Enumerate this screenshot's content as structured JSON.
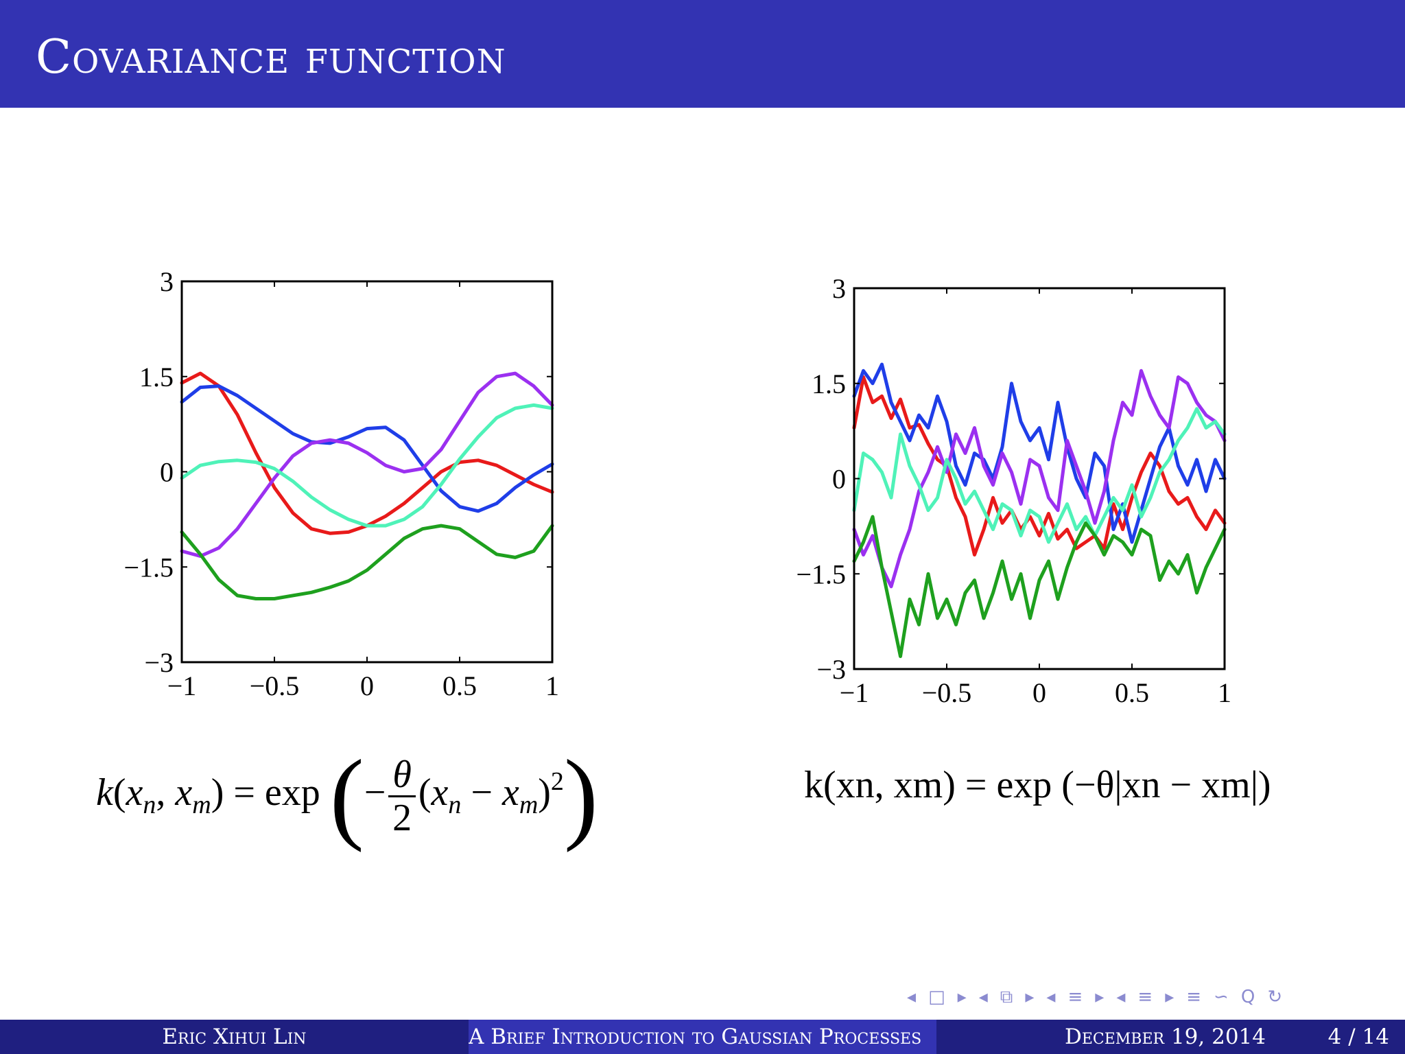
{
  "slide": {
    "title": "Covariance function"
  },
  "formulas": {
    "left_lhs": "k",
    "left_args": [
      "x",
      "n",
      "x",
      "m"
    ],
    "left_eq": "= exp",
    "left_minus": "−",
    "left_num": "θ",
    "left_den": "2",
    "left_pow": "2",
    "right_text": "k(xn, xm) = exp (−θ|xn − xm|)"
  },
  "navigation": {
    "icons": [
      "◂",
      "□",
      "▸",
      "◂",
      "⧉",
      "▸",
      "◂",
      "≡",
      "▸",
      "◂",
      "≡",
      "▸",
      "≡",
      "∽",
      "Q",
      "↻"
    ]
  },
  "footer": {
    "author": "Eric Xihui Lin",
    "talk_title": "A Brief Introduction to Gaussian Processes",
    "date": "December 19, 2014",
    "page": "4 / 14"
  },
  "chart_data": [
    {
      "type": "line",
      "xlim": [
        -1,
        1
      ],
      "ylim": [
        -3,
        3
      ],
      "xticks": [
        "−1",
        "−0.5",
        "0",
        "0.5",
        "1"
      ],
      "yticks": [
        "3",
        "1.5",
        "0",
        "−1.5",
        "−3"
      ],
      "xtick_values": [
        -1,
        -0.5,
        0,
        0.5,
        1
      ],
      "ytick_values": [
        3,
        1.5,
        0,
        -1.5,
        -3
      ],
      "grid": false,
      "series": [
        {
          "color": "#e81a1a",
          "x": [
            -1,
            -0.9,
            -0.8,
            -0.7,
            -0.6,
            -0.5,
            -0.4,
            -0.3,
            -0.2,
            -0.1,
            0,
            0.1,
            0.2,
            0.3,
            0.4,
            0.5,
            0.6,
            0.7,
            0.8,
            0.9,
            1
          ],
          "y": [
            1.4,
            1.55,
            1.35,
            0.9,
            0.3,
            -0.25,
            -0.65,
            -0.9,
            -0.97,
            -0.95,
            -0.85,
            -0.7,
            -0.5,
            -0.25,
            0,
            0.15,
            0.18,
            0.1,
            -0.05,
            -0.2,
            -0.32
          ]
        },
        {
          "color": "#1f3ee8",
          "x": [
            -1,
            -0.9,
            -0.8,
            -0.7,
            -0.6,
            -0.5,
            -0.4,
            -0.3,
            -0.2,
            -0.1,
            0,
            0.1,
            0.2,
            0.3,
            0.4,
            0.5,
            0.6,
            0.7,
            0.8,
            0.9,
            1
          ],
          "y": [
            1.1,
            1.33,
            1.35,
            1.2,
            1.0,
            0.8,
            0.6,
            0.47,
            0.45,
            0.55,
            0.68,
            0.7,
            0.5,
            0.1,
            -0.3,
            -0.55,
            -0.62,
            -0.5,
            -0.25,
            -0.05,
            0.12
          ]
        },
        {
          "color": "#9b30f0",
          "x": [
            -1,
            -0.9,
            -0.8,
            -0.7,
            -0.6,
            -0.5,
            -0.4,
            -0.3,
            -0.2,
            -0.1,
            0,
            0.1,
            0.2,
            0.3,
            0.4,
            0.5,
            0.6,
            0.7,
            0.8,
            0.9,
            1
          ],
          "y": [
            -1.25,
            -1.33,
            -1.2,
            -0.9,
            -0.5,
            -0.1,
            0.25,
            0.45,
            0.5,
            0.45,
            0.3,
            0.1,
            0.0,
            0.05,
            0.35,
            0.8,
            1.25,
            1.5,
            1.55,
            1.35,
            1.05
          ]
        },
        {
          "color": "#4ff2b8",
          "x": [
            -1,
            -0.9,
            -0.8,
            -0.7,
            -0.6,
            -0.5,
            -0.4,
            -0.3,
            -0.2,
            -0.1,
            0,
            0.1,
            0.2,
            0.3,
            0.4,
            0.5,
            0.6,
            0.7,
            0.8,
            0.9,
            1
          ],
          "y": [
            -0.1,
            0.1,
            0.16,
            0.18,
            0.15,
            0.05,
            -0.15,
            -0.4,
            -0.6,
            -0.75,
            -0.85,
            -0.85,
            -0.75,
            -0.55,
            -0.2,
            0.2,
            0.55,
            0.85,
            1.0,
            1.05,
            1.0
          ]
        },
        {
          "color": "#1ea01e",
          "x": [
            -1,
            -0.9,
            -0.8,
            -0.7,
            -0.6,
            -0.5,
            -0.4,
            -0.3,
            -0.2,
            -0.1,
            0,
            0.1,
            0.2,
            0.3,
            0.4,
            0.5,
            0.6,
            0.7,
            0.8,
            0.9,
            1
          ],
          "y": [
            -0.95,
            -1.3,
            -1.7,
            -1.95,
            -2.0,
            -2.0,
            -1.95,
            -1.9,
            -1.82,
            -1.72,
            -1.55,
            -1.3,
            -1.05,
            -0.9,
            -0.85,
            -0.9,
            -1.1,
            -1.3,
            -1.35,
            -1.25,
            -0.85
          ]
        }
      ]
    },
    {
      "type": "line",
      "xlim": [
        -1,
        1
      ],
      "ylim": [
        -3,
        3
      ],
      "xticks": [
        "−1",
        "−0.5",
        "0",
        "0.5",
        "1"
      ],
      "yticks": [
        "3",
        "1.5",
        "0",
        "−1.5",
        "−3"
      ],
      "xtick_values": [
        -1,
        -0.5,
        0,
        0.5,
        1
      ],
      "ytick_values": [
        3,
        1.5,
        0,
        -1.5,
        -3
      ],
      "grid": false,
      "series": [
        {
          "color": "#e81a1a",
          "x": [
            -1,
            -0.95,
            -0.9,
            -0.85,
            -0.8,
            -0.75,
            -0.7,
            -0.65,
            -0.6,
            -0.55,
            -0.5,
            -0.45,
            -0.4,
            -0.35,
            -0.3,
            -0.25,
            -0.2,
            -0.15,
            -0.1,
            -0.05,
            0,
            0.05,
            0.1,
            0.15,
            0.2,
            0.25,
            0.3,
            0.35,
            0.4,
            0.45,
            0.5,
            0.55,
            0.6,
            0.65,
            0.7,
            0.75,
            0.8,
            0.85,
            0.9,
            0.95,
            1
          ],
          "y": [
            0.8,
            1.6,
            1.2,
            1.3,
            0.95,
            1.25,
            0.8,
            0.85,
            0.55,
            0.3,
            0.2,
            -0.3,
            -0.6,
            -1.2,
            -0.8,
            -0.3,
            -0.7,
            -0.5,
            -0.8,
            -0.6,
            -0.9,
            -0.55,
            -0.95,
            -0.8,
            -1.1,
            -1.0,
            -0.9,
            -1.1,
            -0.4,
            -0.8,
            -0.3,
            0.1,
            0.4,
            0.2,
            -0.2,
            -0.4,
            -0.3,
            -0.6,
            -0.8,
            -0.5,
            -0.7
          ]
        },
        {
          "color": "#1f3ee8",
          "x": [
            -1,
            -0.95,
            -0.9,
            -0.85,
            -0.8,
            -0.75,
            -0.7,
            -0.65,
            -0.6,
            -0.55,
            -0.5,
            -0.45,
            -0.4,
            -0.35,
            -0.3,
            -0.25,
            -0.2,
            -0.15,
            -0.1,
            -0.05,
            0,
            0.05,
            0.1,
            0.15,
            0.2,
            0.25,
            0.3,
            0.35,
            0.4,
            0.45,
            0.5,
            0.55,
            0.6,
            0.65,
            0.7,
            0.75,
            0.8,
            0.85,
            0.9,
            0.95,
            1
          ],
          "y": [
            1.3,
            1.7,
            1.5,
            1.8,
            1.2,
            0.9,
            0.6,
            1.0,
            0.8,
            1.3,
            0.9,
            0.2,
            -0.1,
            0.4,
            0.3,
            0.0,
            0.5,
            1.5,
            0.9,
            0.6,
            0.8,
            0.3,
            1.2,
            0.5,
            0.0,
            -0.3,
            0.4,
            0.2,
            -0.8,
            -0.4,
            -1.0,
            -0.5,
            0.0,
            0.5,
            0.8,
            0.2,
            -0.1,
            0.3,
            -0.2,
            0.3,
            0.0
          ]
        },
        {
          "color": "#9b30f0",
          "x": [
            -1,
            -0.95,
            -0.9,
            -0.85,
            -0.8,
            -0.75,
            -0.7,
            -0.65,
            -0.6,
            -0.55,
            -0.5,
            -0.45,
            -0.4,
            -0.35,
            -0.3,
            -0.25,
            -0.2,
            -0.15,
            -0.1,
            -0.05,
            0,
            0.05,
            0.1,
            0.15,
            0.2,
            0.25,
            0.3,
            0.35,
            0.4,
            0.45,
            0.5,
            0.55,
            0.6,
            0.65,
            0.7,
            0.75,
            0.8,
            0.85,
            0.9,
            0.95,
            1
          ],
          "y": [
            -0.8,
            -1.2,
            -0.9,
            -1.4,
            -1.7,
            -1.2,
            -0.8,
            -0.2,
            0.1,
            0.5,
            0.1,
            0.7,
            0.4,
            0.8,
            0.2,
            -0.1,
            0.4,
            0.1,
            -0.4,
            0.3,
            0.2,
            -0.3,
            -0.5,
            0.6,
            0.2,
            -0.2,
            -0.7,
            -0.2,
            0.6,
            1.2,
            1.0,
            1.7,
            1.3,
            1.0,
            0.8,
            1.6,
            1.5,
            1.2,
            1.0,
            0.9,
            0.6
          ]
        },
        {
          "color": "#4ff2b8",
          "x": [
            -1,
            -0.95,
            -0.9,
            -0.85,
            -0.8,
            -0.75,
            -0.7,
            -0.65,
            -0.6,
            -0.55,
            -0.5,
            -0.45,
            -0.4,
            -0.35,
            -0.3,
            -0.25,
            -0.2,
            -0.15,
            -0.1,
            -0.05,
            0,
            0.05,
            0.1,
            0.15,
            0.2,
            0.25,
            0.3,
            0.35,
            0.4,
            0.45,
            0.5,
            0.55,
            0.6,
            0.65,
            0.7,
            0.75,
            0.8,
            0.85,
            0.9,
            0.95,
            1
          ],
          "y": [
            -0.5,
            0.4,
            0.3,
            0.1,
            -0.3,
            0.7,
            0.2,
            -0.1,
            -0.5,
            -0.3,
            0.3,
            0.0,
            -0.4,
            -0.2,
            -0.5,
            -0.8,
            -0.4,
            -0.5,
            -0.9,
            -0.5,
            -0.6,
            -1.0,
            -0.7,
            -0.4,
            -0.8,
            -0.6,
            -0.9,
            -0.6,
            -0.3,
            -0.5,
            -0.1,
            -0.6,
            -0.3,
            0.1,
            0.3,
            0.6,
            0.8,
            1.1,
            0.8,
            0.9,
            0.7
          ]
        },
        {
          "color": "#1ea01e",
          "x": [
            -1,
            -0.95,
            -0.9,
            -0.85,
            -0.8,
            -0.75,
            -0.7,
            -0.65,
            -0.6,
            -0.55,
            -0.5,
            -0.45,
            -0.4,
            -0.35,
            -0.3,
            -0.25,
            -0.2,
            -0.15,
            -0.1,
            -0.05,
            0,
            0.05,
            0.1,
            0.15,
            0.2,
            0.25,
            0.3,
            0.35,
            0.4,
            0.45,
            0.5,
            0.55,
            0.6,
            0.65,
            0.7,
            0.75,
            0.8,
            0.85,
            0.9,
            0.95,
            1
          ],
          "y": [
            -1.3,
            -1.0,
            -0.6,
            -1.4,
            -2.1,
            -2.8,
            -1.9,
            -2.3,
            -1.5,
            -2.2,
            -1.9,
            -2.3,
            -1.8,
            -1.6,
            -2.2,
            -1.8,
            -1.3,
            -1.9,
            -1.5,
            -2.2,
            -1.6,
            -1.3,
            -1.9,
            -1.4,
            -1.0,
            -0.7,
            -0.9,
            -1.2,
            -0.9,
            -1.0,
            -1.2,
            -0.8,
            -0.9,
            -1.6,
            -1.3,
            -1.5,
            -1.2,
            -1.8,
            -1.4,
            -1.1,
            -0.8
          ]
        }
      ]
    }
  ]
}
